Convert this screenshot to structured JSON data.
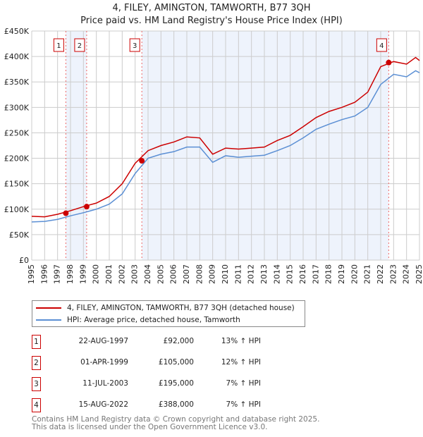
{
  "header": {
    "title": "4, FILEY, AMINGTON, TAMWORTH, B77 3QH",
    "subtitle": "Price paid vs. HM Land Registry's House Price Index (HPI)"
  },
  "chart_data": {
    "type": "line",
    "title": "4, FILEY, AMINGTON, TAMWORTH, B77 3QH",
    "subtitle": "Price paid vs. HM Land Registry's House Price Index (HPI)",
    "xlim": [
      1995,
      2025
    ],
    "ylim": [
      0,
      450000
    ],
    "x_ticks": [
      "1995",
      "1996",
      "1997",
      "1998",
      "1999",
      "2000",
      "2001",
      "2002",
      "2003",
      "2004",
      "2005",
      "2006",
      "2007",
      "2008",
      "2009",
      "2010",
      "2011",
      "2012",
      "2013",
      "2014",
      "2015",
      "2016",
      "2017",
      "2018",
      "2019",
      "2020",
      "2021",
      "2022",
      "2023",
      "2024",
      "2025"
    ],
    "y_ticks": [
      {
        "value": 0,
        "label": "£0"
      },
      {
        "value": 50000,
        "label": "£50K"
      },
      {
        "value": 100000,
        "label": "£100K"
      },
      {
        "value": 150000,
        "label": "£150K"
      },
      {
        "value": 200000,
        "label": "£200K"
      },
      {
        "value": 250000,
        "label": "£250K"
      },
      {
        "value": 300000,
        "label": "£300K"
      },
      {
        "value": 350000,
        "label": "£350K"
      },
      {
        "value": 400000,
        "label": "£400K"
      },
      {
        "value": 450000,
        "label": "£450K"
      }
    ],
    "grid": true,
    "x": [
      1995,
      1996,
      1997,
      1998,
      1999,
      2000,
      2001,
      2002,
      2003,
      2004,
      2005,
      2006,
      2007,
      2008,
      2009,
      2010,
      2011,
      2012,
      2013,
      2014,
      2015,
      2016,
      2017,
      2018,
      2019,
      2020,
      2021,
      2022,
      2023,
      2024,
      2024.7,
      2025
    ],
    "series": [
      {
        "name": "4, FILEY, AMINGTON, TAMWORTH, B77 3QH (detached house)",
        "color": "#cc0000",
        "values": [
          86000,
          85000,
          90000,
          97000,
          105000,
          112000,
          125000,
          150000,
          190000,
          215000,
          225000,
          232000,
          242000,
          240000,
          208000,
          220000,
          218000,
          220000,
          222000,
          235000,
          245000,
          262000,
          280000,
          292000,
          300000,
          310000,
          330000,
          380000,
          390000,
          385000,
          398000,
          392000
        ]
      },
      {
        "name": "HPI: Average price, detached house, Tamworth",
        "color": "#5b8fd4",
        "values": [
          75000,
          76000,
          80000,
          87000,
          93000,
          100000,
          110000,
          130000,
          170000,
          200000,
          208000,
          213000,
          222000,
          222000,
          192000,
          205000,
          202000,
          204000,
          206000,
          215000,
          225000,
          240000,
          257000,
          267000,
          276000,
          283000,
          300000,
          345000,
          365000,
          360000,
          372000,
          368000
        ]
      }
    ],
    "sales": [
      {
        "label": "1",
        "x": 1997.64,
        "value": 92000
      },
      {
        "label": "2",
        "x": 1999.25,
        "value": 105000
      },
      {
        "label": "3",
        "x": 2003.52,
        "value": 195000
      },
      {
        "label": "4",
        "x": 2022.62,
        "value": 388000
      }
    ],
    "shaded_ranges": [
      [
        1997.64,
        1999.25
      ],
      [
        2003.52,
        2022.62
      ]
    ],
    "legend_placement": "below"
  },
  "legend": {
    "items": [
      {
        "label": "4, FILEY, AMINGTON, TAMWORTH, B77 3QH (detached house)",
        "color": "#cc0000"
      },
      {
        "label": "HPI: Average price, detached house, Tamworth",
        "color": "#5b8fd4"
      }
    ]
  },
  "transactions": [
    {
      "num": "1",
      "date": "22-AUG-1997",
      "price": "£92,000",
      "hpi": "13% ↑ HPI"
    },
    {
      "num": "2",
      "date": "01-APR-1999",
      "price": "£105,000",
      "hpi": "12% ↑ HPI"
    },
    {
      "num": "3",
      "date": "11-JUL-2003",
      "price": "£195,000",
      "hpi": "7% ↑ HPI"
    },
    {
      "num": "4",
      "date": "15-AUG-2022",
      "price": "£388,000",
      "hpi": "7% ↑ HPI"
    }
  ],
  "footer": {
    "line1": "Contains HM Land Registry data © Crown copyright and database right 2025.",
    "line2": "This data is licensed under the Open Government Licence v3.0."
  }
}
